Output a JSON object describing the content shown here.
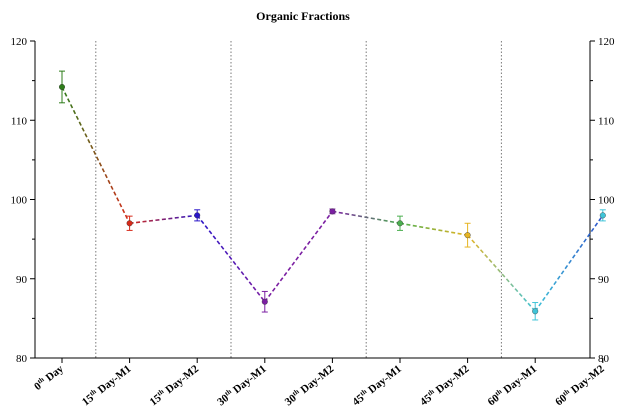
{
  "chart_data": {
    "type": "line",
    "title": "Organic Fractions",
    "xlabel": "",
    "ylabel": "",
    "ylim": [
      80,
      120
    ],
    "yticks": [
      80,
      90,
      100,
      110,
      120
    ],
    "right_axis": true,
    "grid": false,
    "categories": [
      {
        "pre": "0",
        "sup": "th",
        "post": " Day"
      },
      {
        "pre": "15",
        "sup": "th",
        "post": " Day-M1"
      },
      {
        "pre": "15",
        "sup": "th",
        "post": " Day-M2"
      },
      {
        "pre": "30",
        "sup": "th",
        "post": " Day-M1"
      },
      {
        "pre": "30",
        "sup": "th",
        "post": " Day-M2"
      },
      {
        "pre": "45",
        "sup": "th",
        "post": " Day-M1"
      },
      {
        "pre": "45",
        "sup": "th",
        "post": " Day-M2"
      },
      {
        "pre": "60",
        "sup": "th",
        "post": " Day-M1"
      },
      {
        "pre": "60",
        "sup": "th",
        "post": " Day-M2"
      }
    ],
    "values": [
      114.2,
      97.0,
      98.0,
      87.1,
      98.5,
      97.0,
      95.5,
      85.9,
      98.0
    ],
    "errors": [
      2.0,
      0.9,
      0.7,
      1.3,
      0.3,
      0.9,
      1.5,
      1.1,
      0.7
    ],
    "point_colors": [
      "#2e7d1a",
      "#d62a1a",
      "#2a16c9",
      "#7b1fa2",
      "#7b1fa2",
      "#4caf50",
      "#e6b422",
      "#40c4d8",
      "#40c4d8"
    ],
    "segment_colors": [
      [
        "#2e7d1a",
        "#d62a1a"
      ],
      [
        "#d62a1a",
        "#2a16c9"
      ],
      [
        "#2a16c9",
        "#7b1fa2"
      ],
      [
        "#7b1fa2",
        "#7b1fa2"
      ],
      [
        "#7b1fa2",
        "#4caf50"
      ],
      [
        "#4caf50",
        "#e6b422"
      ],
      [
        "#e6b422",
        "#40c4d8"
      ],
      [
        "#40c4d8",
        "#2a4fc9"
      ]
    ],
    "group_separators_after": [
      0,
      2,
      4,
      6
    ]
  }
}
